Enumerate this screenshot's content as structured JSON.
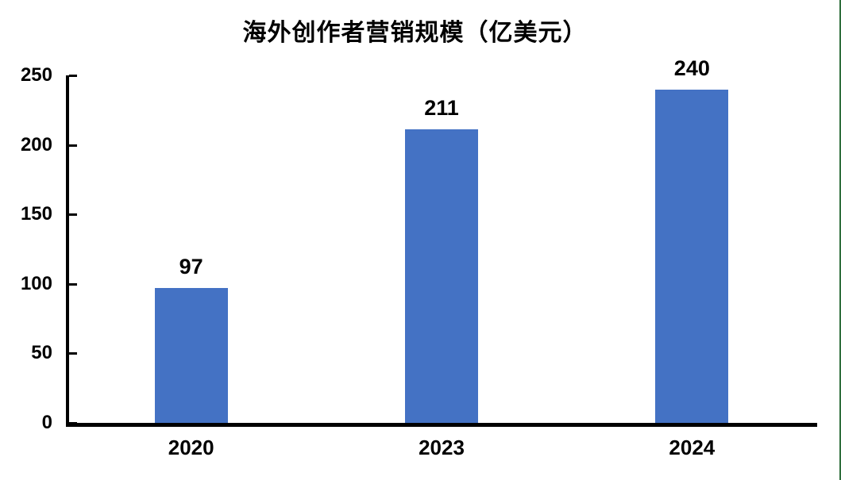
{
  "chart_data": {
    "type": "bar",
    "title": "海外创作者营销规模（亿美元）",
    "categories": [
      "2020",
      "2023",
      "2024"
    ],
    "values": [
      97,
      211,
      240
    ],
    "xlabel": "",
    "ylabel": "",
    "ylim": [
      0,
      250
    ],
    "yticks": [
      0,
      50,
      100,
      150,
      200,
      250
    ],
    "grid": false,
    "legend": false,
    "bar_color": "#4472C4",
    "axis_color": "#000000",
    "text_color": "#000000",
    "right_border_color": "#2E6E3C"
  }
}
